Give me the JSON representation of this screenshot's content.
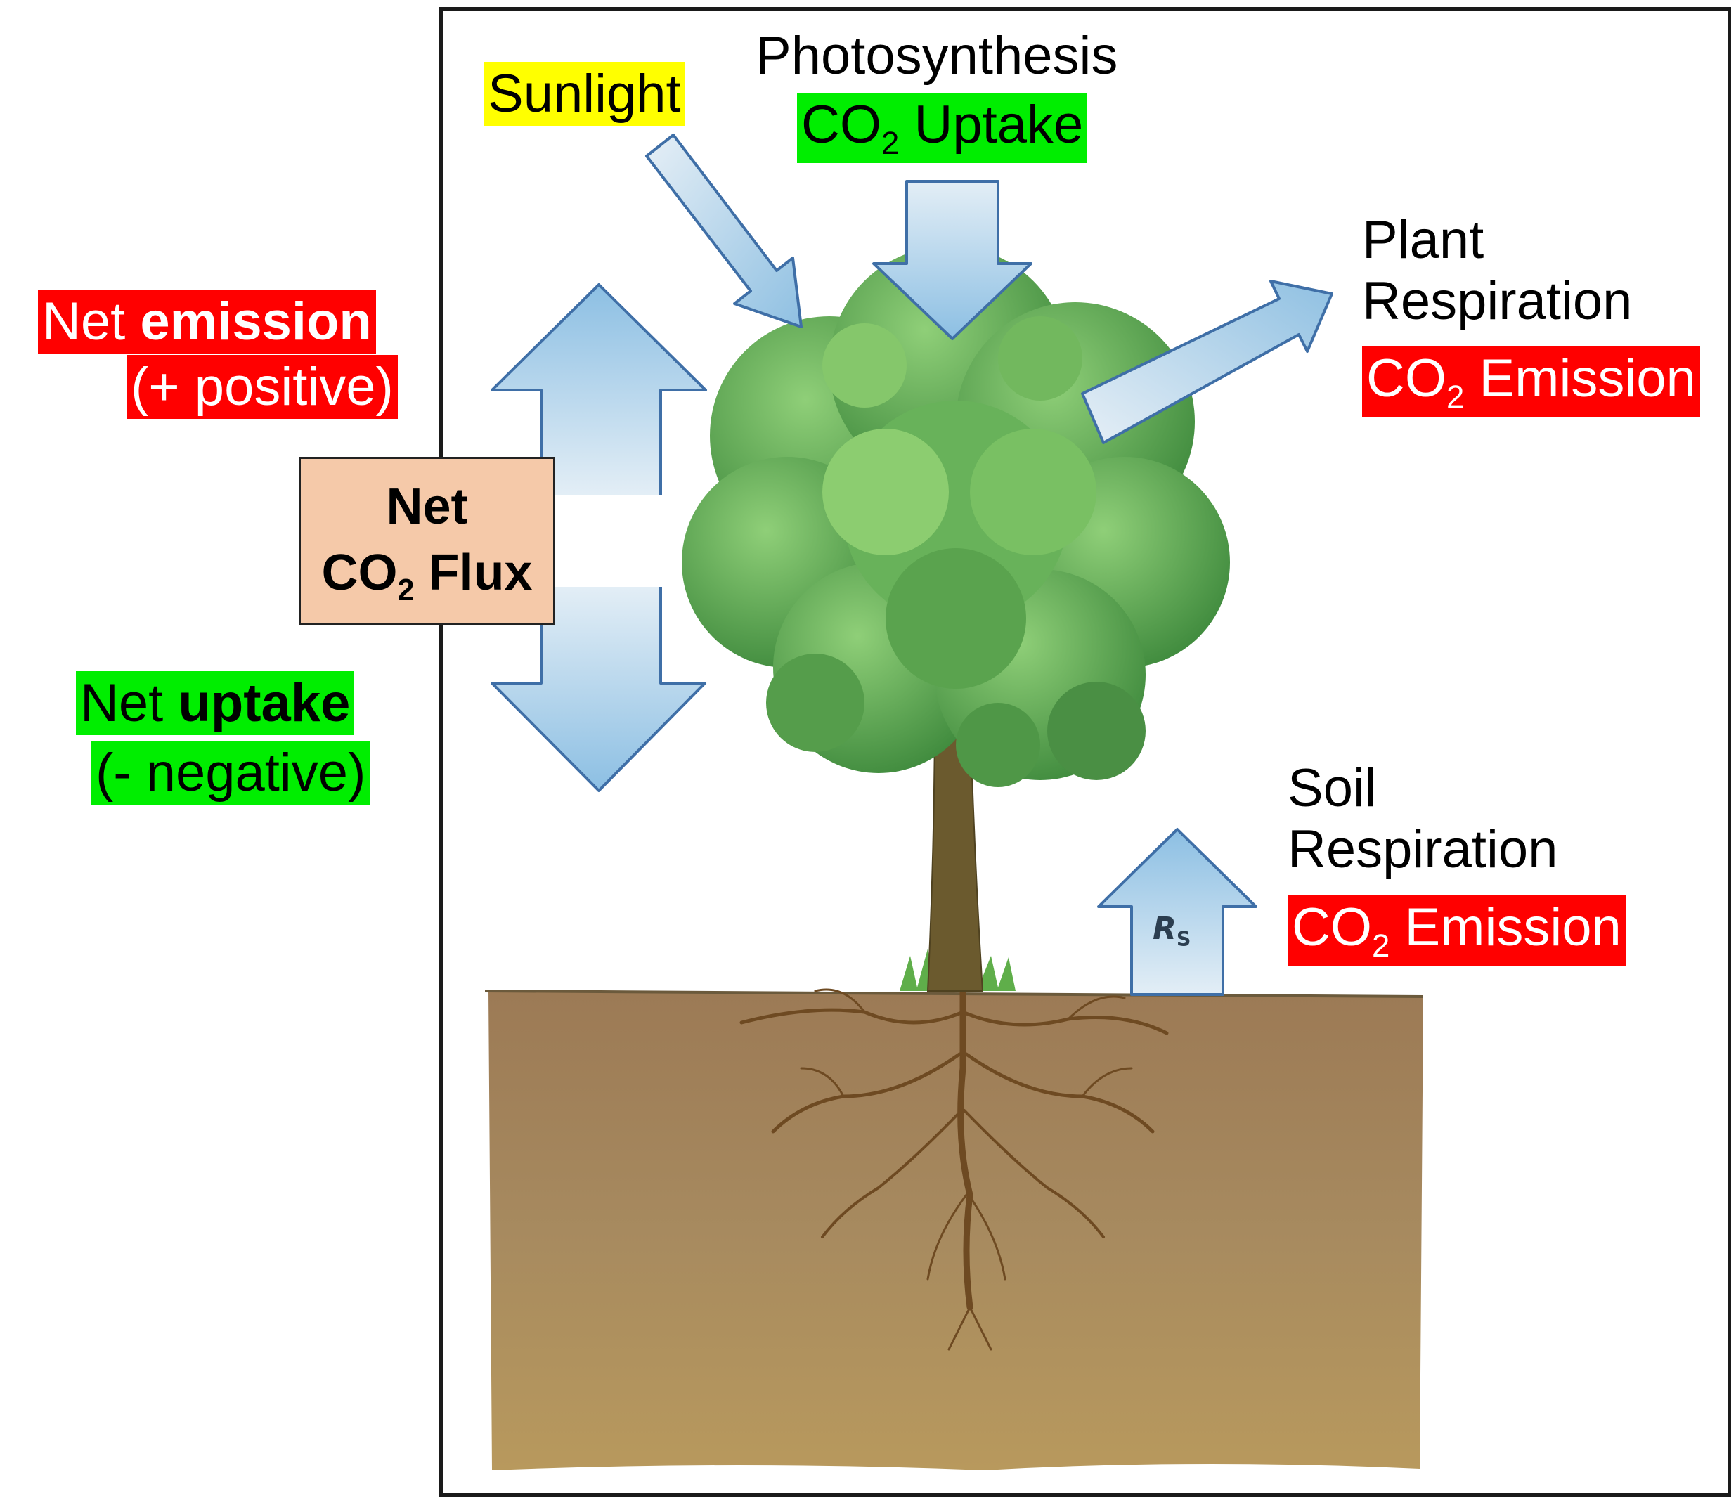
{
  "colors": {
    "emission_red": "#ff0000",
    "uptake_green": "#00ee00",
    "sunlight_yellow": "#ffff00",
    "flux_box": "#f5c9a9",
    "arrow_blue": "#a8cfe8",
    "soil_brown": "#a9875f",
    "foliage_green": "#5aa050",
    "trunk_brown": "#6b5a2e"
  },
  "labels": {
    "sunlight": "Sunlight",
    "photosynthesis": "Photosynthesis",
    "co2_uptake": {
      "prefix": "CO",
      "sub": "2",
      "suffix": " Uptake"
    },
    "plant_respiration": {
      "line1": "Plant",
      "line2": "Respiration"
    },
    "plant_emission": {
      "prefix": "CO",
      "sub": "2",
      "suffix": " Emission"
    },
    "soil_respiration": {
      "line1": "Soil",
      "line2": "Respiration"
    },
    "soil_emission": {
      "prefix": "CO",
      "sub": "2",
      "suffix": " Emission"
    },
    "net_emission": {
      "plain": "Net ",
      "bold": "emission",
      "sign": "(+ positive)"
    },
    "net_uptake": {
      "plain": "Net ",
      "bold": "uptake",
      "sign": "(- negative)"
    },
    "net_flux": {
      "line1": "Net",
      "prefix": "CO",
      "sub": "2",
      "suffix": " Flux"
    },
    "rs": {
      "main": "R",
      "sub": "S"
    }
  },
  "icons": [
    "sunlight-arrow",
    "photosynthesis-arrow",
    "plant-respiration-arrow",
    "soil-respiration-arrow",
    "net-flux-double-arrow",
    "tree",
    "soil-block",
    "roots"
  ]
}
